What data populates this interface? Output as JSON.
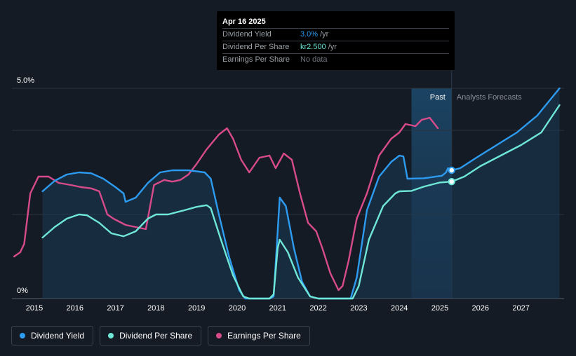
{
  "tooltip": {
    "date": "Apr 16 2025",
    "rows": [
      {
        "label": "Dividend Yield",
        "value": "3.0%",
        "unit": "/yr"
      },
      {
        "label": "Dividend Per Share",
        "value": "kr2.500",
        "unit": "/yr"
      },
      {
        "label": "Earnings Per Share",
        "value": "No data",
        "unit": ""
      }
    ]
  },
  "legend": [
    {
      "label": "Dividend Yield",
      "color": "#2d9bf0"
    },
    {
      "label": "Dividend Per Share",
      "color": "#6ee7d7"
    },
    {
      "label": "Earnings Per Share",
      "color": "#d84b8b"
    }
  ],
  "chart_data": {
    "type": "line",
    "x_ticks": [
      "2015",
      "2016",
      "2017",
      "2018",
      "2019",
      "2020",
      "2021",
      "2022",
      "2023",
      "2024",
      "2025",
      "2026",
      "2027"
    ],
    "y_ticks": [
      "5.0%",
      "0%"
    ],
    "xlim": [
      2014.5,
      2027.95
    ],
    "ylim": [
      0,
      5.0
    ],
    "grid": true,
    "past_label": "Past",
    "forecast_label": "Analysts Forecasts",
    "past_shade_range": [
      2024.3,
      2025.29
    ],
    "forecast_start": 2025.29,
    "colors": {
      "yield": "#2d9bf0",
      "dps": "#6ee7d7",
      "eps": "#d84b8b"
    },
    "series": [
      {
        "name": "Dividend Yield",
        "key": "yield",
        "points": [
          [
            2015.2,
            2.55
          ],
          [
            2015.5,
            2.8
          ],
          [
            2015.8,
            2.95
          ],
          [
            2016.1,
            3.0
          ],
          [
            2016.4,
            2.98
          ],
          [
            2016.7,
            2.85
          ],
          [
            2017.0,
            2.65
          ],
          [
            2017.2,
            2.5
          ],
          [
            2017.25,
            2.3
          ],
          [
            2017.5,
            2.4
          ],
          [
            2017.8,
            2.75
          ],
          [
            2018.1,
            3.0
          ],
          [
            2018.4,
            3.05
          ],
          [
            2018.8,
            3.05
          ],
          [
            2019.2,
            3.0
          ],
          [
            2019.35,
            2.85
          ],
          [
            2019.55,
            2.0
          ],
          [
            2019.8,
            1.0
          ],
          [
            2020.05,
            0.2
          ],
          [
            2020.2,
            0.0
          ],
          [
            2020.4,
            0.0
          ],
          [
            2020.8,
            0.0
          ],
          [
            2020.9,
            0.05
          ],
          [
            2021.0,
            1.6
          ],
          [
            2021.05,
            2.4
          ],
          [
            2021.2,
            2.2
          ],
          [
            2021.4,
            1.2
          ],
          [
            2021.6,
            0.4
          ],
          [
            2021.8,
            0.05
          ],
          [
            2022.0,
            0.0
          ],
          [
            2022.4,
            0.0
          ],
          [
            2022.8,
            0.0
          ],
          [
            2022.95,
            0.5
          ],
          [
            2023.2,
            2.1
          ],
          [
            2023.5,
            2.9
          ],
          [
            2023.8,
            3.25
          ],
          [
            2024.0,
            3.4
          ],
          [
            2024.1,
            3.38
          ],
          [
            2024.2,
            2.85
          ],
          [
            2024.6,
            2.86
          ],
          [
            2025.05,
            2.92
          ],
          [
            2025.15,
            3.0
          ],
          [
            2025.2,
            3.1
          ],
          [
            2025.29,
            3.05
          ],
          [
            2025.5,
            3.1
          ],
          [
            2025.9,
            3.35
          ],
          [
            2026.4,
            3.65
          ],
          [
            2026.9,
            3.95
          ],
          [
            2027.4,
            4.35
          ],
          [
            2027.95,
            5.0
          ]
        ]
      },
      {
        "name": "Dividend Per Share",
        "key": "dps",
        "points": [
          [
            2015.2,
            1.45
          ],
          [
            2015.5,
            1.7
          ],
          [
            2015.8,
            1.9
          ],
          [
            2016.1,
            2.0
          ],
          [
            2016.3,
            1.98
          ],
          [
            2016.6,
            1.8
          ],
          [
            2016.9,
            1.55
          ],
          [
            2017.2,
            1.48
          ],
          [
            2017.5,
            1.6
          ],
          [
            2017.8,
            1.9
          ],
          [
            2018.0,
            2.0
          ],
          [
            2018.3,
            2.0
          ],
          [
            2018.7,
            2.1
          ],
          [
            2019.0,
            2.18
          ],
          [
            2019.25,
            2.22
          ],
          [
            2019.35,
            2.15
          ],
          [
            2019.6,
            1.4
          ],
          [
            2019.9,
            0.55
          ],
          [
            2020.15,
            0.05
          ],
          [
            2020.3,
            0.0
          ],
          [
            2020.8,
            0.0
          ],
          [
            2020.9,
            0.1
          ],
          [
            2021.0,
            1.2
          ],
          [
            2021.05,
            1.4
          ],
          [
            2021.25,
            1.1
          ],
          [
            2021.5,
            0.5
          ],
          [
            2021.8,
            0.05
          ],
          [
            2022.0,
            0.0
          ],
          [
            2022.4,
            0.0
          ],
          [
            2022.85,
            0.0
          ],
          [
            2023.0,
            0.3
          ],
          [
            2023.25,
            1.4
          ],
          [
            2023.6,
            2.2
          ],
          [
            2023.9,
            2.5
          ],
          [
            2024.0,
            2.55
          ],
          [
            2024.3,
            2.56
          ],
          [
            2024.6,
            2.66
          ],
          [
            2025.0,
            2.76
          ],
          [
            2025.29,
            2.78
          ],
          [
            2025.6,
            2.9
          ],
          [
            2026.0,
            3.15
          ],
          [
            2026.5,
            3.4
          ],
          [
            2027.0,
            3.65
          ],
          [
            2027.5,
            3.95
          ],
          [
            2027.95,
            4.6
          ]
        ]
      },
      {
        "name": "Earnings Per Share",
        "key": "eps",
        "points": [
          [
            2014.5,
            1.0
          ],
          [
            2014.65,
            1.1
          ],
          [
            2014.75,
            1.3
          ],
          [
            2014.9,
            2.5
          ],
          [
            2015.1,
            2.9
          ],
          [
            2015.35,
            2.9
          ],
          [
            2015.6,
            2.75
          ],
          [
            2015.9,
            2.7
          ],
          [
            2016.15,
            2.65
          ],
          [
            2016.4,
            2.62
          ],
          [
            2016.6,
            2.55
          ],
          [
            2016.8,
            2.0
          ],
          [
            2016.95,
            1.9
          ],
          [
            2017.25,
            1.75
          ],
          [
            2017.5,
            1.7
          ],
          [
            2017.75,
            1.65
          ],
          [
            2017.95,
            2.7
          ],
          [
            2018.2,
            2.82
          ],
          [
            2018.4,
            2.78
          ],
          [
            2018.6,
            2.82
          ],
          [
            2018.8,
            2.95
          ],
          [
            2019.0,
            3.2
          ],
          [
            2019.25,
            3.55
          ],
          [
            2019.55,
            3.9
          ],
          [
            2019.75,
            4.05
          ],
          [
            2019.9,
            3.8
          ],
          [
            2020.1,
            3.3
          ],
          [
            2020.3,
            3.0
          ],
          [
            2020.55,
            3.35
          ],
          [
            2020.8,
            3.4
          ],
          [
            2020.95,
            3.1
          ],
          [
            2021.15,
            3.45
          ],
          [
            2021.35,
            3.3
          ],
          [
            2021.55,
            2.5
          ],
          [
            2021.75,
            1.8
          ],
          [
            2021.95,
            1.6
          ],
          [
            2022.1,
            1.2
          ],
          [
            2022.3,
            0.6
          ],
          [
            2022.5,
            0.2
          ],
          [
            2022.6,
            0.3
          ],
          [
            2022.75,
            0.9
          ],
          [
            2022.95,
            1.9
          ],
          [
            2023.2,
            2.5
          ],
          [
            2023.5,
            3.4
          ],
          [
            2023.8,
            3.8
          ],
          [
            2024.0,
            3.95
          ],
          [
            2024.15,
            4.15
          ],
          [
            2024.4,
            4.1
          ],
          [
            2024.55,
            4.25
          ],
          [
            2024.75,
            4.3
          ],
          [
            2024.95,
            4.05
          ]
        ]
      }
    ],
    "markers": [
      {
        "series": "yield",
        "x": 2025.29,
        "y": 3.05
      },
      {
        "series": "dps",
        "x": 2025.29,
        "y": 2.78
      }
    ]
  }
}
